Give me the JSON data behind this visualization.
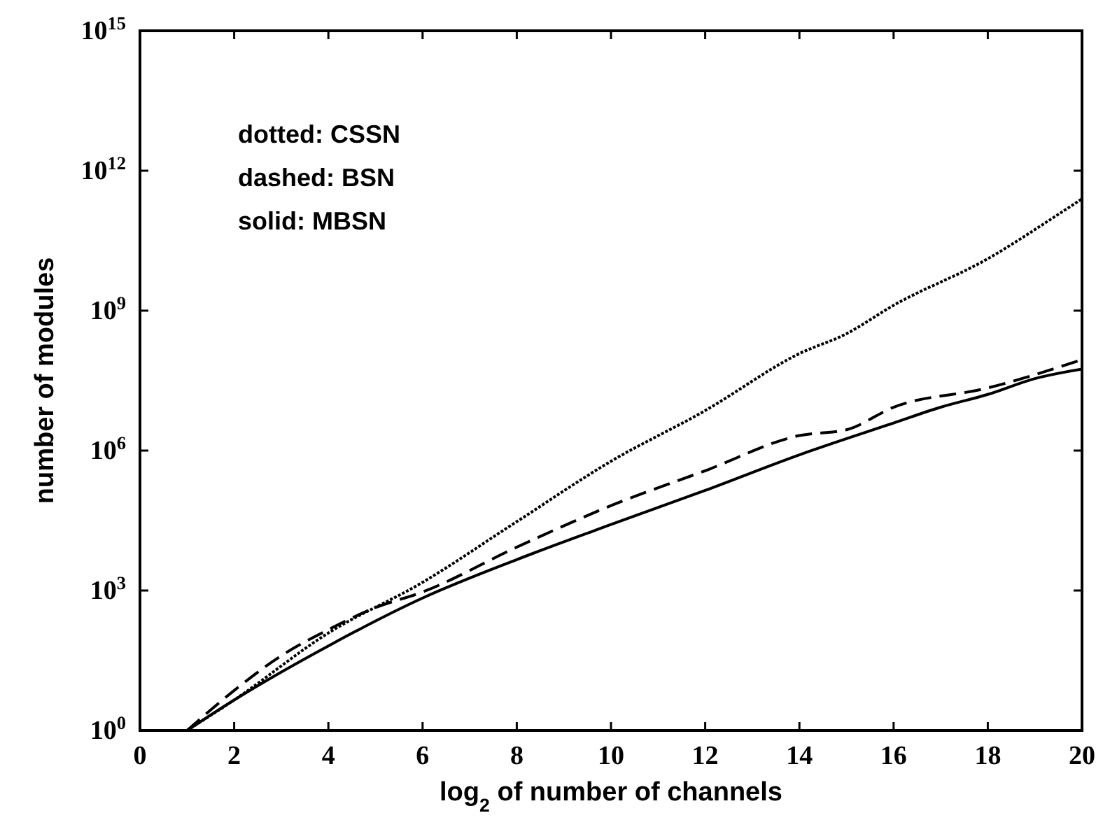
{
  "chart_data": {
    "type": "line",
    "xlabel": "log$_{2}$ of number of channels",
    "ylabel": "number of modules",
    "log": "y",
    "xlim": [
      0,
      20
    ],
    "ylim": [
      1,
      1000000000000000.0
    ],
    "xticks": [
      0,
      2,
      4,
      6,
      8,
      10,
      12,
      14,
      16,
      18,
      20
    ],
    "yticks": [
      {
        "value": 1,
        "label": "10$^{0}$"
      },
      {
        "value": 1000,
        "label": "10$^{3}$"
      },
      {
        "value": 1000000,
        "label": "10$^{6}$"
      },
      {
        "value": 1000000000,
        "label": "10$^{9}$"
      },
      {
        "value": 1000000000000,
        "label": "10$^{12}$"
      },
      {
        "value": 1000000000000000,
        "label": "10$^{15}$"
      }
    ],
    "grid": false,
    "annotations": [
      "dotted: CSSN",
      "dashed: BSN",
      "solid: MBSN"
    ],
    "series": [
      {
        "color": "#000000",
        "line_style": "dotted",
        "x": [
          1,
          2,
          4,
          6,
          8,
          10,
          12,
          14,
          15,
          16,
          18,
          19.4,
          20
        ],
        "values": [
          1,
          4.5,
          123,
          1500,
          30000,
          590000,
          7200000,
          120000000,
          320000000,
          1300000000,
          13000000000,
          100000000000,
          250000000000
        ]
      },
      {
        "color": "#000000",
        "line_style": "dashed",
        "x": [
          1,
          2,
          3,
          4,
          5,
          6,
          8,
          10,
          12,
          14,
          15,
          16,
          18,
          20
        ],
        "values": [
          1,
          7.2,
          40,
          145,
          430,
          930,
          8500,
          66000,
          370000,
          2100000,
          2800000,
          8500000,
          22000000,
          89000000
        ]
      },
      {
        "color": "#000000",
        "line_style": "solid",
        "x": [
          1,
          2,
          4,
          6,
          8,
          10,
          12,
          14,
          16,
          17,
          18,
          19,
          20
        ],
        "values": [
          1,
          4.5,
          65,
          690,
          4600,
          26000,
          140000,
          810000,
          3900000,
          8500000,
          16000000,
          35000000,
          56000000
        ]
      }
    ]
  }
}
